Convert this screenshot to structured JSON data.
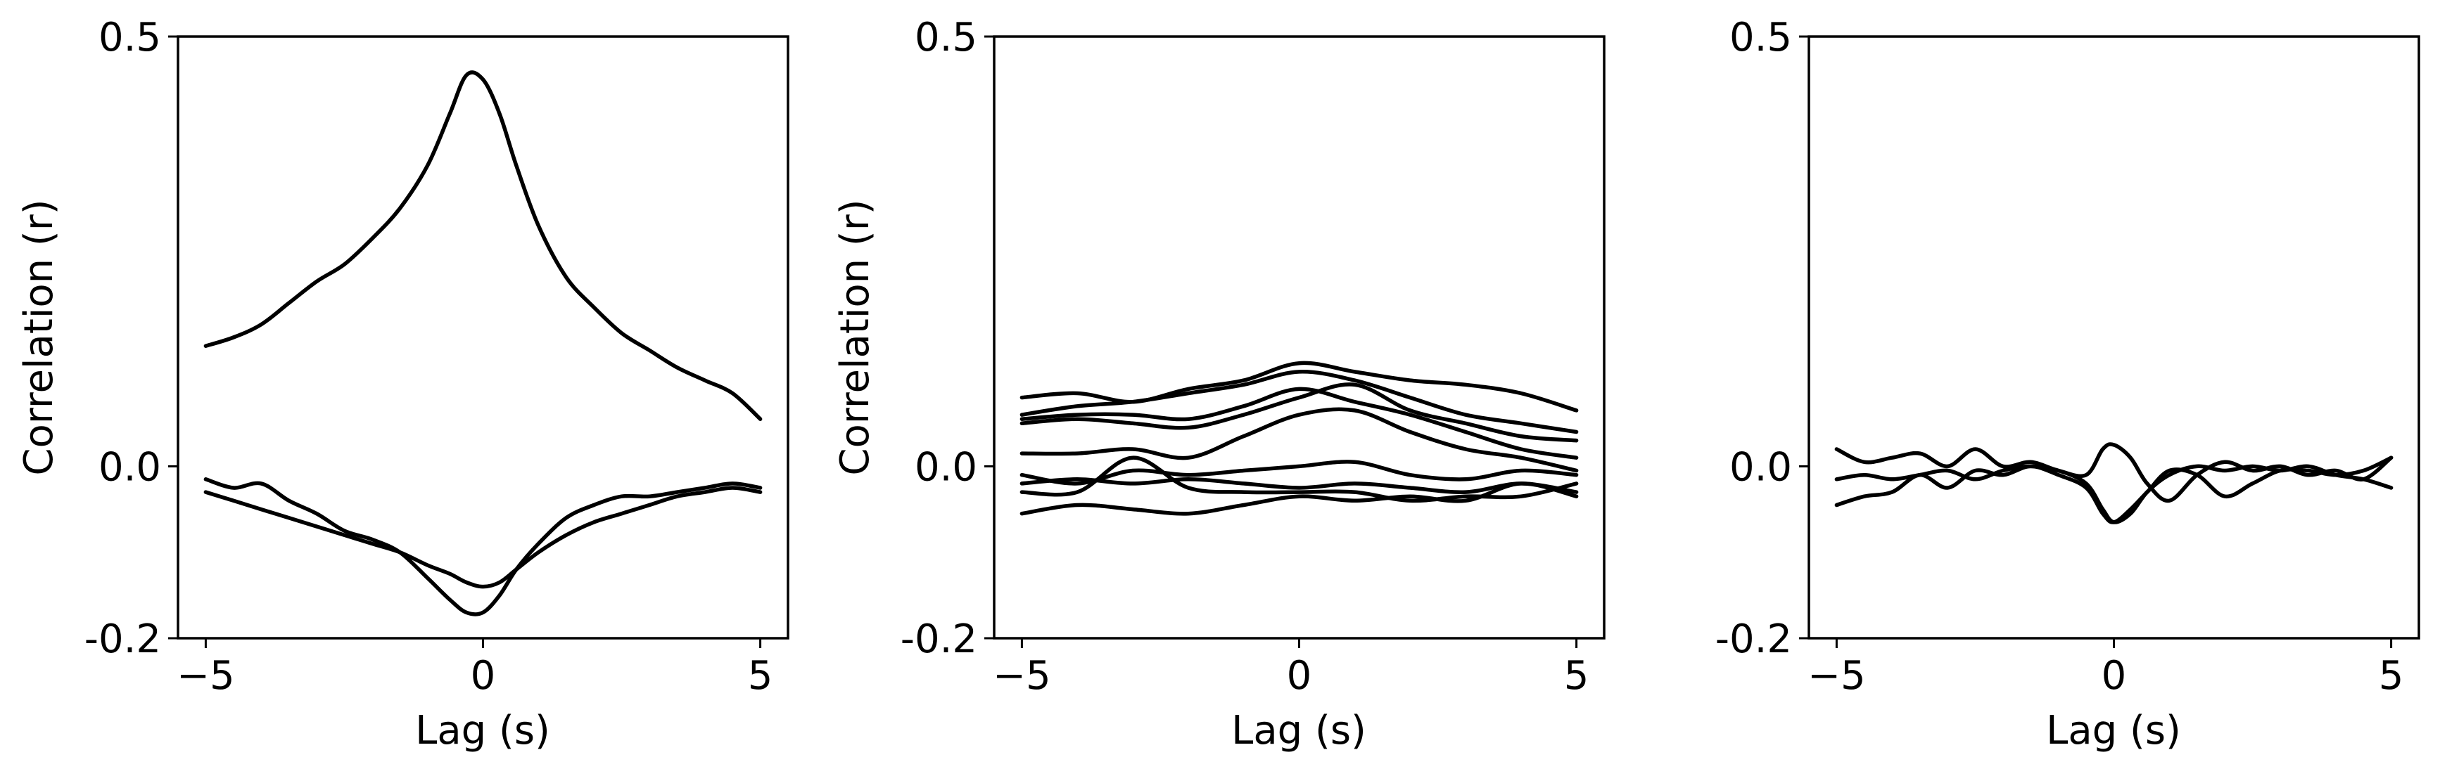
{
  "line_color": "#000000",
  "chart_data": [
    {
      "type": "line",
      "xlabel": "Lag (s)",
      "ylabel": "Correlation (r)",
      "xlim": [
        -5.5,
        5.5
      ],
      "ylim": [
        -0.2,
        0.5
      ],
      "xticks": [
        {
          "value": -5,
          "label": "−5"
        },
        {
          "value": 0,
          "label": "0"
        },
        {
          "value": 5,
          "label": "5"
        }
      ],
      "yticks": [
        {
          "value": 0.5,
          "label": "0.5"
        },
        {
          "value": 0.0,
          "label": "0.0"
        },
        {
          "value": -0.2,
          "label": "-0.2"
        }
      ],
      "grid": false,
      "series": [
        {
          "x": [
            -5,
            -4.5,
            -4,
            -3.5,
            -3,
            -2.5,
            -2,
            -1.5,
            -1,
            -0.6,
            -0.3,
            0,
            0.3,
            0.6,
            1,
            1.5,
            2,
            2.5,
            3,
            3.5,
            4,
            4.5,
            5
          ],
          "values": [
            0.14,
            0.15,
            0.165,
            0.19,
            0.215,
            0.235,
            0.265,
            0.3,
            0.35,
            0.41,
            0.455,
            0.45,
            0.41,
            0.35,
            0.28,
            0.22,
            0.185,
            0.155,
            0.135,
            0.115,
            0.1,
            0.085,
            0.055
          ]
        },
        {
          "x": [
            -5,
            -4.5,
            -4,
            -3.5,
            -3,
            -2.5,
            -2,
            -1.5,
            -1,
            -0.6,
            -0.3,
            0,
            0.3,
            0.6,
            1,
            1.5,
            2,
            2.5,
            3,
            3.5,
            4,
            4.5,
            5
          ],
          "values": [
            -0.015,
            -0.025,
            -0.02,
            -0.04,
            -0.055,
            -0.075,
            -0.085,
            -0.1,
            -0.13,
            -0.155,
            -0.17,
            -0.17,
            -0.15,
            -0.12,
            -0.09,
            -0.06,
            -0.045,
            -0.035,
            -0.035,
            -0.03,
            -0.025,
            -0.02,
            -0.025
          ]
        },
        {
          "x": [
            -5,
            -4.5,
            -4,
            -3.5,
            -3,
            -2.5,
            -2,
            -1.5,
            -1,
            -0.6,
            -0.3,
            0,
            0.3,
            0.6,
            1,
            1.5,
            2,
            2.5,
            3,
            3.5,
            4,
            4.5,
            5
          ],
          "values": [
            -0.03,
            -0.04,
            -0.05,
            -0.06,
            -0.07,
            -0.08,
            -0.09,
            -0.1,
            -0.115,
            -0.125,
            -0.135,
            -0.14,
            -0.135,
            -0.12,
            -0.1,
            -0.08,
            -0.065,
            -0.055,
            -0.045,
            -0.035,
            -0.03,
            -0.025,
            -0.03
          ]
        }
      ]
    },
    {
      "type": "line",
      "xlabel": "Lag (s)",
      "ylabel": "Correlation (r)",
      "xlim": [
        -5.5,
        5.5
      ],
      "ylim": [
        -0.2,
        0.5
      ],
      "xticks": [
        {
          "value": -5,
          "label": "−5"
        },
        {
          "value": 0,
          "label": "0"
        },
        {
          "value": 5,
          "label": "5"
        }
      ],
      "yticks": [
        {
          "value": 0.5,
          "label": "0.5"
        },
        {
          "value": 0.0,
          "label": "0.0"
        },
        {
          "value": -0.2,
          "label": "-0.2"
        }
      ],
      "grid": false,
      "series": [
        {
          "x": [
            -5,
            -4,
            -3,
            -2,
            -1,
            0,
            1,
            2,
            3,
            4,
            5
          ],
          "values": [
            0.08,
            0.085,
            0.075,
            0.09,
            0.1,
            0.12,
            0.11,
            0.1,
            0.095,
            0.085,
            0.065
          ]
        },
        {
          "x": [
            -5,
            -4,
            -3,
            -2,
            -1,
            0,
            1,
            2,
            3,
            4,
            5
          ],
          "values": [
            0.06,
            0.07,
            0.075,
            0.085,
            0.095,
            0.11,
            0.1,
            0.08,
            0.06,
            0.05,
            0.04
          ]
        },
        {
          "x": [
            -5,
            -4,
            -3,
            -2,
            -1,
            0,
            1,
            2,
            3,
            4,
            5
          ],
          "values": [
            0.055,
            0.06,
            0.06,
            0.055,
            0.07,
            0.09,
            0.075,
            0.06,
            0.04,
            0.02,
            0.01
          ]
        },
        {
          "x": [
            -5,
            -4,
            -3,
            -2,
            -1,
            0,
            1,
            2,
            3,
            4,
            5
          ],
          "values": [
            0.05,
            0.055,
            0.05,
            0.045,
            0.06,
            0.08,
            0.095,
            0.065,
            0.05,
            0.035,
            0.03
          ]
        },
        {
          "x": [
            -5,
            -4,
            -3,
            -2,
            -1,
            0,
            1,
            2,
            3,
            4,
            5
          ],
          "values": [
            0.015,
            0.015,
            0.02,
            0.01,
            0.035,
            0.06,
            0.065,
            0.04,
            0.02,
            0.01,
            -0.005
          ]
        },
        {
          "x": [
            -5,
            -4,
            -3,
            -2,
            -1,
            0,
            1,
            2,
            3,
            4,
            5
          ],
          "values": [
            -0.01,
            -0.02,
            -0.005,
            -0.01,
            -0.005,
            0.0,
            0.005,
            -0.01,
            -0.015,
            -0.005,
            -0.01
          ]
        },
        {
          "x": [
            -5,
            -4,
            -3,
            -2,
            -1,
            0,
            1,
            2,
            3,
            4,
            5
          ],
          "values": [
            -0.02,
            -0.015,
            -0.02,
            -0.015,
            -0.02,
            -0.025,
            -0.02,
            -0.025,
            -0.03,
            -0.02,
            -0.03
          ]
        },
        {
          "x": [
            -5,
            -4,
            -3,
            -2,
            -1,
            0,
            1,
            2,
            3,
            4,
            5
          ],
          "values": [
            -0.03,
            -0.03,
            0.01,
            -0.025,
            -0.03,
            -0.03,
            -0.03,
            -0.04,
            -0.035,
            -0.035,
            -0.02
          ]
        },
        {
          "x": [
            -5,
            -4,
            -3,
            -2,
            -1,
            0,
            1,
            2,
            3,
            4,
            5
          ],
          "values": [
            -0.055,
            -0.045,
            -0.05,
            -0.055,
            -0.045,
            -0.035,
            -0.04,
            -0.035,
            -0.04,
            -0.02,
            -0.035
          ]
        }
      ]
    },
    {
      "type": "line",
      "xlabel": "Lag (s)",
      "ylabel": "",
      "xlim": [
        -5.5,
        5.5
      ],
      "ylim": [
        -0.2,
        0.5
      ],
      "xticks": [
        {
          "value": -5,
          "label": "−5"
        },
        {
          "value": 0,
          "label": "0"
        },
        {
          "value": 5,
          "label": "5"
        }
      ],
      "yticks": [
        {
          "value": 0.5,
          "label": "0.5"
        },
        {
          "value": 0.0,
          "label": "0.0"
        },
        {
          "value": -0.2,
          "label": "-0.2"
        }
      ],
      "grid": false,
      "series": [
        {
          "x": [
            -5,
            -4.5,
            -4,
            -3.5,
            -3,
            -2.5,
            -2,
            -1.5,
            -1,
            -0.5,
            -0.2,
            0,
            0.3,
            0.6,
            1,
            1.5,
            2,
            2.5,
            3,
            3.5,
            4,
            4.5,
            5
          ],
          "values": [
            0.02,
            0.005,
            0.01,
            0.015,
            0.0,
            0.02,
            0.0,
            0.005,
            -0.005,
            -0.01,
            0.02,
            0.025,
            0.01,
            -0.02,
            -0.04,
            -0.01,
            0.005,
            -0.005,
            0.0,
            -0.01,
            -0.005,
            -0.015,
            0.01
          ]
        },
        {
          "x": [
            -5,
            -4.5,
            -4,
            -3.5,
            -3,
            -2.5,
            -2,
            -1.5,
            -1,
            -0.5,
            -0.2,
            0,
            0.3,
            0.6,
            1,
            1.5,
            2,
            2.5,
            3,
            3.5,
            4,
            4.5,
            5
          ],
          "values": [
            -0.015,
            -0.01,
            -0.015,
            -0.01,
            -0.005,
            -0.015,
            -0.005,
            0.0,
            -0.005,
            -0.02,
            -0.05,
            -0.065,
            -0.055,
            -0.03,
            -0.01,
            0.0,
            -0.005,
            0.0,
            -0.005,
            0.0,
            -0.01,
            -0.015,
            -0.025
          ]
        },
        {
          "x": [
            -5,
            -4.5,
            -4,
            -3.5,
            -3,
            -2.5,
            -2,
            -1.5,
            -1,
            -0.5,
            -0.2,
            0,
            0.3,
            0.6,
            1,
            1.5,
            2,
            2.5,
            3,
            3.5,
            4,
            4.5,
            5
          ],
          "values": [
            -0.045,
            -0.035,
            -0.03,
            -0.01,
            -0.025,
            -0.005,
            -0.01,
            0.0,
            -0.01,
            -0.025,
            -0.055,
            -0.065,
            -0.05,
            -0.03,
            -0.005,
            -0.01,
            -0.035,
            -0.02,
            -0.005,
            -0.005,
            -0.01,
            -0.005,
            0.01
          ]
        }
      ]
    }
  ]
}
